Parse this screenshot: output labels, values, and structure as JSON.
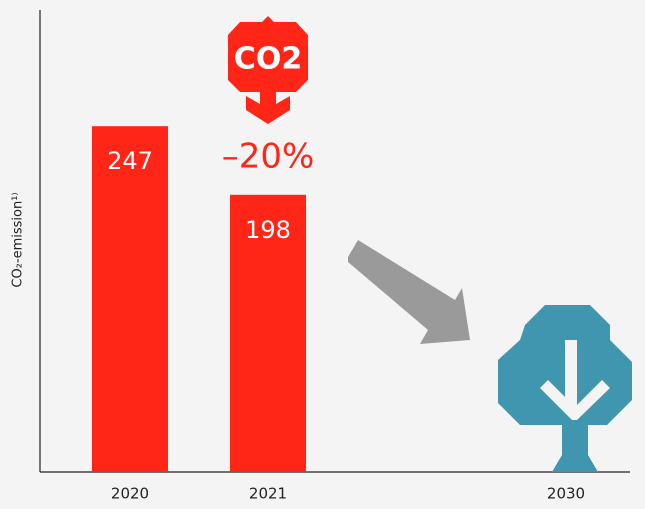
{
  "chart_data": {
    "type": "bar",
    "y_label": "CO₂-emission¹⁾",
    "categories": [
      "2020",
      "2021",
      "2030"
    ],
    "values": [
      247,
      198,
      null
    ],
    "color": "#ff2618",
    "ylim": [
      0,
      330
    ],
    "annotations": [
      "CO2",
      "–20%"
    ]
  }
}
